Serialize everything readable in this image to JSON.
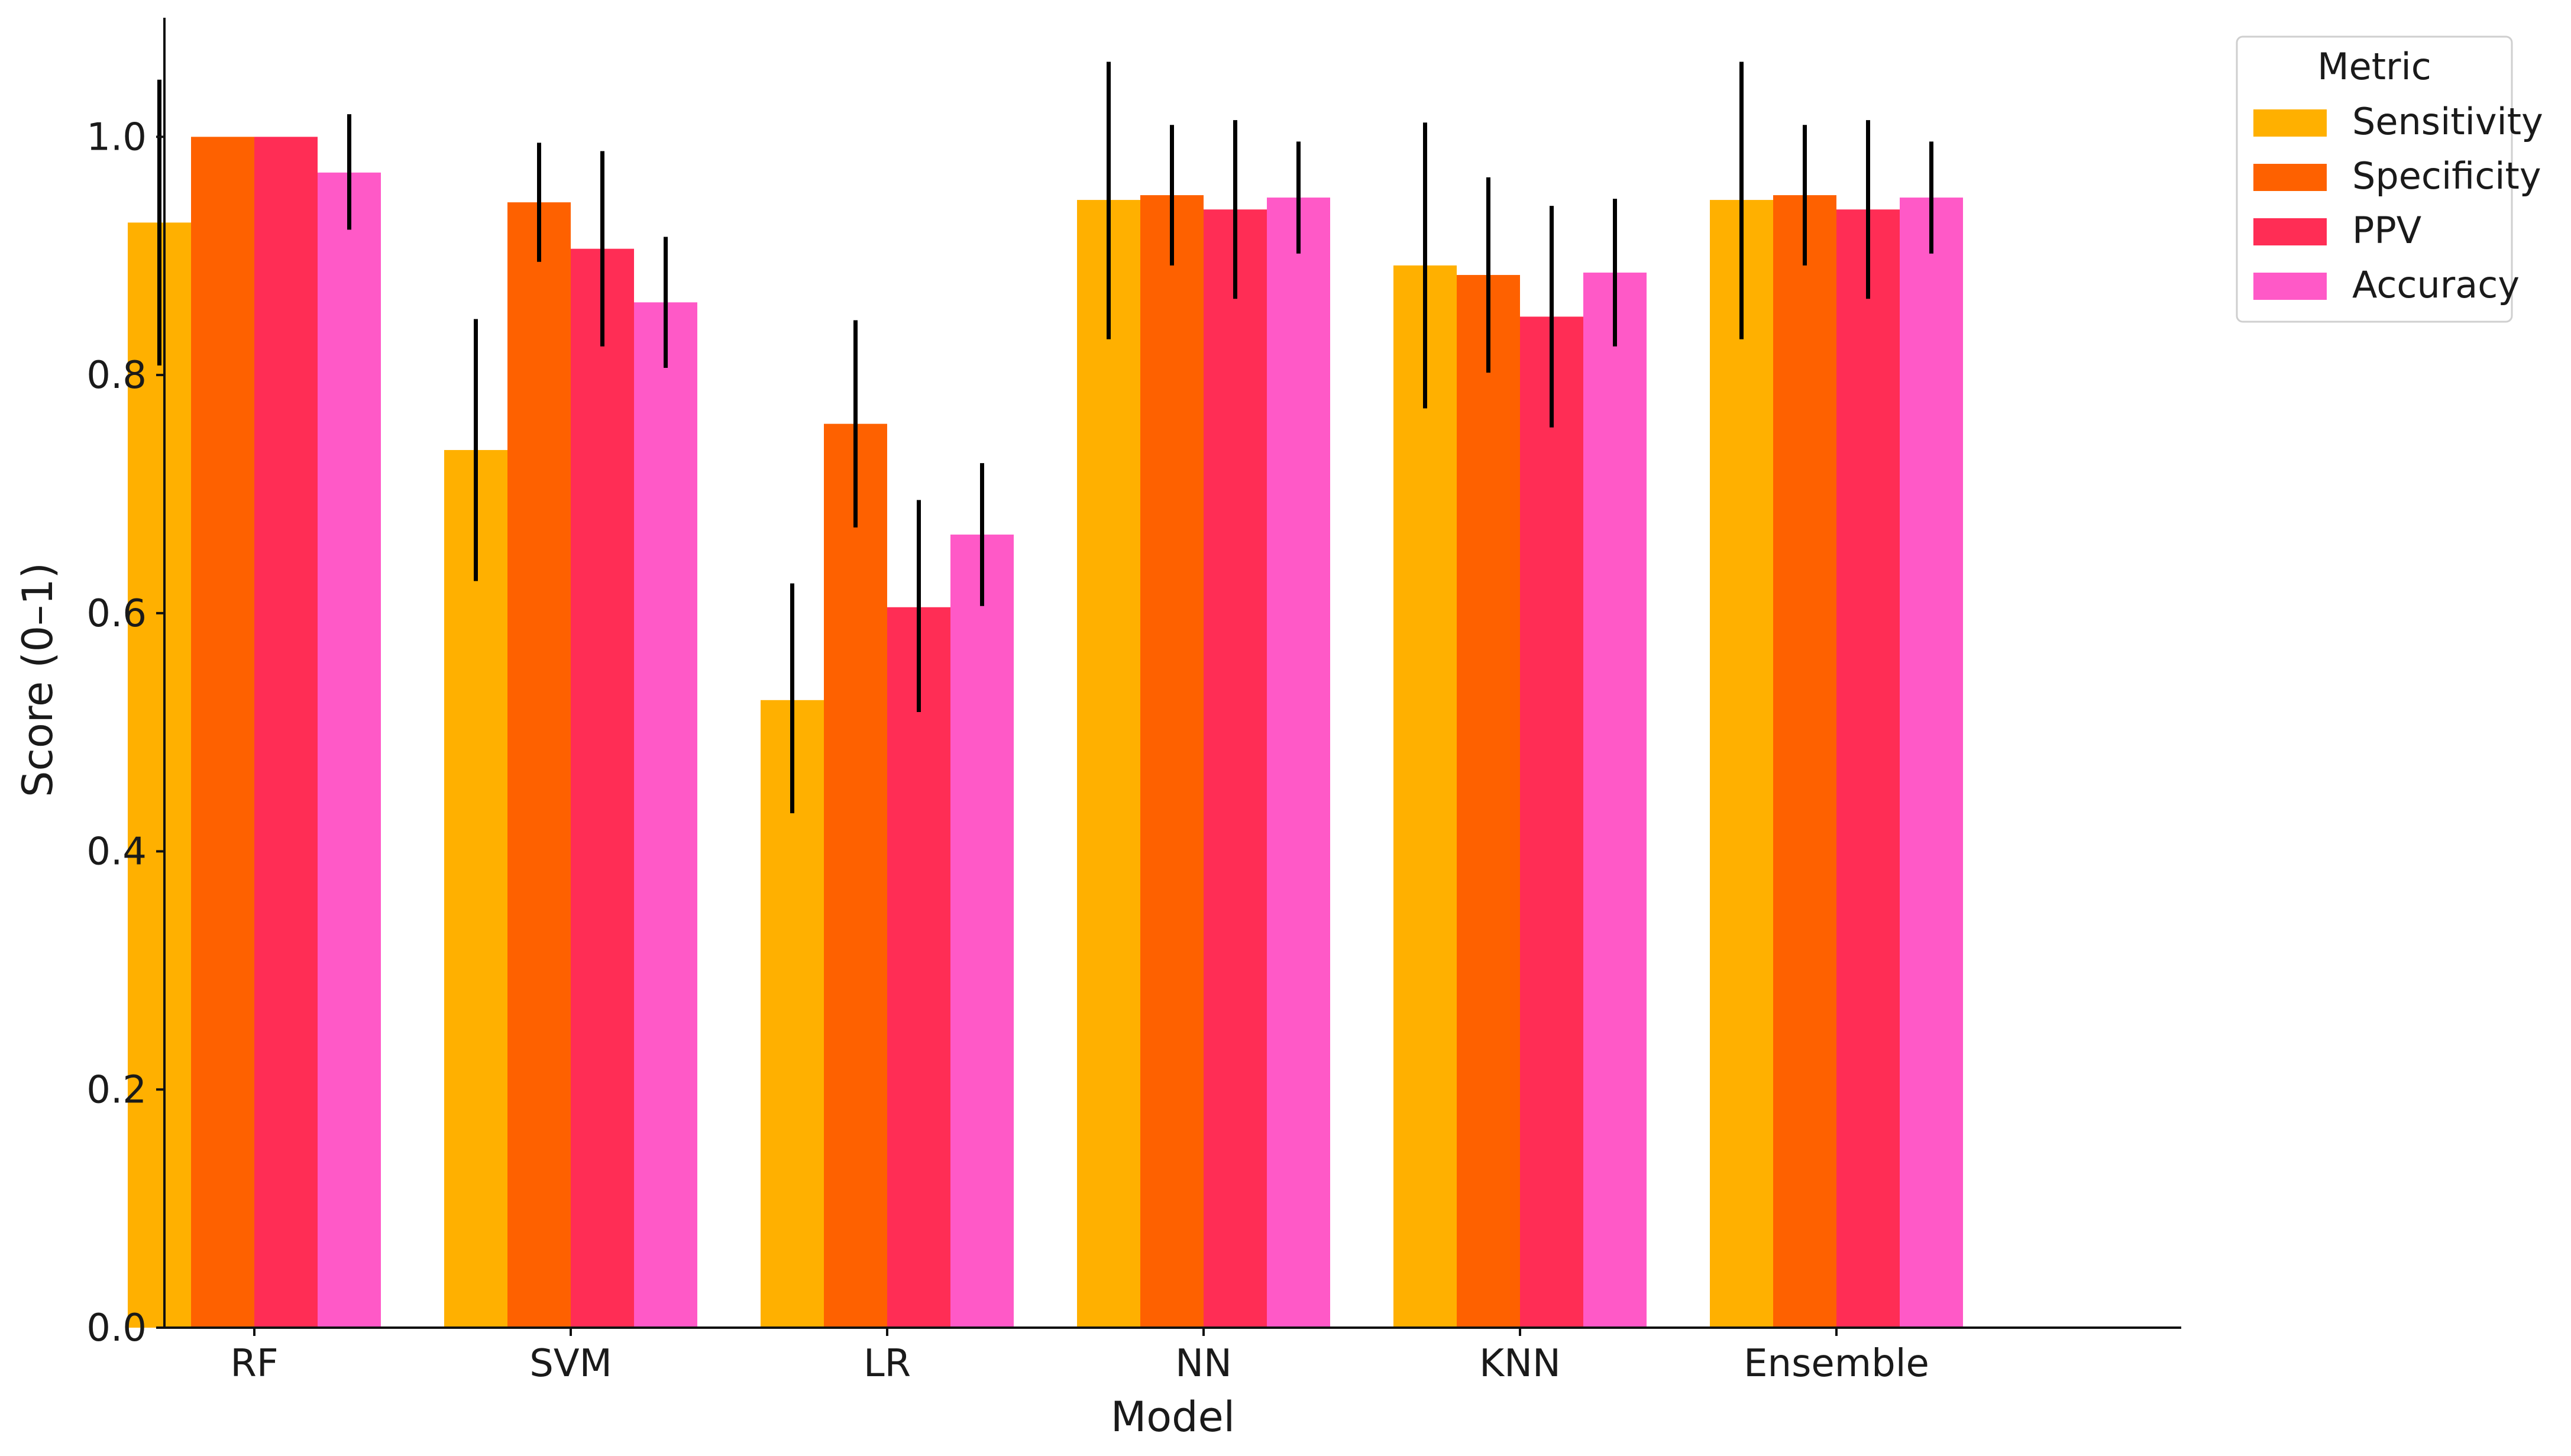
{
  "chart_data": {
    "type": "bar",
    "title": "",
    "xlabel": "Model",
    "ylabel": "Score (0–1)",
    "ylim": [
      0,
      1.1
    ],
    "yticks": [
      0.0,
      0.2,
      0.4,
      0.6,
      0.8,
      1.0
    ],
    "ytick_labels": [
      "0.0",
      "0.2",
      "0.4",
      "0.6",
      "0.8",
      "1.0"
    ],
    "categories": [
      "RF",
      "SVM",
      "LR",
      "NN",
      "KNN",
      "Ensemble"
    ],
    "legend": {
      "title": "Metric",
      "placement": "outside-top-right"
    },
    "series": [
      {
        "name": "Sensitivity",
        "color": "#FFB000",
        "values": [
          0.928,
          0.737,
          0.527,
          0.947,
          0.892,
          0.947
        ],
        "err_low": [
          0.808,
          0.627,
          0.432,
          0.83,
          0.772,
          0.83
        ],
        "err_high": [
          1.048,
          0.847,
          0.625,
          1.063,
          1.012,
          1.063
        ]
      },
      {
        "name": "Specificity",
        "color": "#FE6100",
        "values": [
          1.0,
          0.945,
          0.759,
          0.951,
          0.884,
          0.951
        ],
        "err_low": [
          1.0,
          0.895,
          0.672,
          0.892,
          0.802,
          0.892
        ],
        "err_high": [
          1.0,
          0.995,
          0.846,
          1.01,
          0.966,
          1.01
        ]
      },
      {
        "name": "PPV",
        "color": "#FF2D55",
        "values": [
          1.0,
          0.906,
          0.605,
          0.939,
          0.849,
          0.939
        ],
        "err_low": [
          1.0,
          0.824,
          0.517,
          0.864,
          0.756,
          0.864
        ],
        "err_high": [
          1.0,
          0.988,
          0.695,
          1.014,
          0.942,
          1.014
        ]
      },
      {
        "name": "Accuracy",
        "color": "#FF59C7",
        "values": [
          0.97,
          0.861,
          0.666,
          0.949,
          0.886,
          0.949
        ],
        "err_low": [
          0.922,
          0.806,
          0.606,
          0.902,
          0.824,
          0.902
        ],
        "err_high": [
          1.019,
          0.916,
          0.726,
          0.996,
          0.948,
          0.996
        ]
      }
    ]
  }
}
